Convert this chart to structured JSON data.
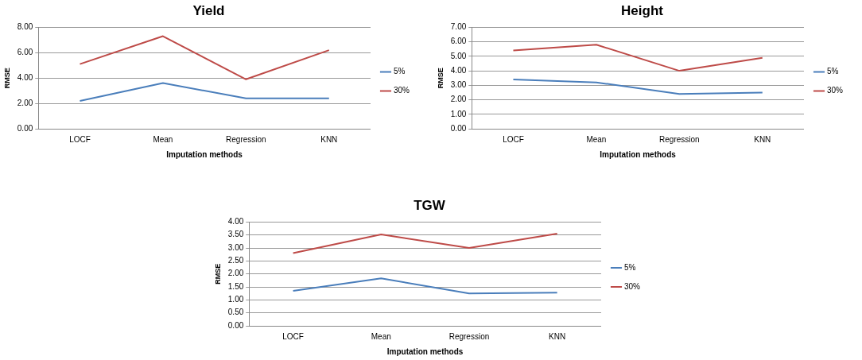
{
  "chart_data": [
    {
      "type": "line",
      "title": "Yield",
      "xlabel": "Imputation methods",
      "ylabel": "RMSE",
      "categories": [
        "LOCF",
        "Mean",
        "Regression",
        "KNN"
      ],
      "ylim": [
        0,
        8
      ],
      "yticks": [
        {
          "value": 0,
          "label": "0.00"
        },
        {
          "value": 2,
          "label": "2.00"
        },
        {
          "value": 4,
          "label": "4.00"
        },
        {
          "value": 6,
          "label": "6.00"
        },
        {
          "value": 8,
          "label": "8.00"
        }
      ],
      "grid": "y",
      "legend": "right",
      "marker": "none",
      "line_style": "solid",
      "series": [
        {
          "name": "5%",
          "color": "#4a7ebb",
          "values": [
            2.2,
            3.6,
            2.4,
            2.4
          ]
        },
        {
          "name": "30%",
          "color": "#be4b48",
          "values": [
            5.1,
            7.3,
            3.9,
            6.2
          ]
        }
      ]
    },
    {
      "type": "line",
      "title": "Height",
      "xlabel": "Imputation methods",
      "ylabel": "RMSE",
      "categories": [
        "LOCF",
        "Mean",
        "Regression",
        "KNN"
      ],
      "ylim": [
        0,
        7
      ],
      "yticks": [
        {
          "value": 0,
          "label": "0.00"
        },
        {
          "value": 1,
          "label": "1.00"
        },
        {
          "value": 2,
          "label": "2.00"
        },
        {
          "value": 3,
          "label": "3.00"
        },
        {
          "value": 4,
          "label": "4.00"
        },
        {
          "value": 5,
          "label": "5.00"
        },
        {
          "value": 6,
          "label": "6.00"
        },
        {
          "value": 7,
          "label": "7.00"
        }
      ],
      "grid": "y",
      "legend": "right",
      "marker": "none",
      "line_style": "solid",
      "series": [
        {
          "name": "5%",
          "color": "#4a7ebb",
          "values": [
            3.4,
            3.2,
            2.4,
            2.5
          ]
        },
        {
          "name": "30%",
          "color": "#be4b48",
          "values": [
            5.4,
            5.8,
            4.0,
            4.9
          ]
        }
      ]
    },
    {
      "type": "line",
      "title": "TGW",
      "xlabel": "Imputation methods",
      "ylabel": "RMSE",
      "categories": [
        "LOCF",
        "Mean",
        "Regression",
        "KNN"
      ],
      "ylim": [
        0,
        4
      ],
      "yticks": [
        {
          "value": 0,
          "label": "0.00"
        },
        {
          "value": 0.5,
          "label": "0.50"
        },
        {
          "value": 1,
          "label": "1.00"
        },
        {
          "value": 1.5,
          "label": "1.50"
        },
        {
          "value": 2,
          "label": "2.00"
        },
        {
          "value": 2.5,
          "label": "2.50"
        },
        {
          "value": 3,
          "label": "3.00"
        },
        {
          "value": 3.5,
          "label": "3.50"
        },
        {
          "value": 4,
          "label": "4.00"
        }
      ],
      "grid": "y",
      "legend": "right",
      "marker": "none",
      "line_style": "solid",
      "series": [
        {
          "name": "5%",
          "color": "#4a7ebb",
          "values": [
            1.35,
            1.83,
            1.25,
            1.28
          ]
        },
        {
          "name": "30%",
          "color": "#be4b48",
          "values": [
            2.8,
            3.52,
            3.0,
            3.55
          ]
        }
      ]
    }
  ]
}
